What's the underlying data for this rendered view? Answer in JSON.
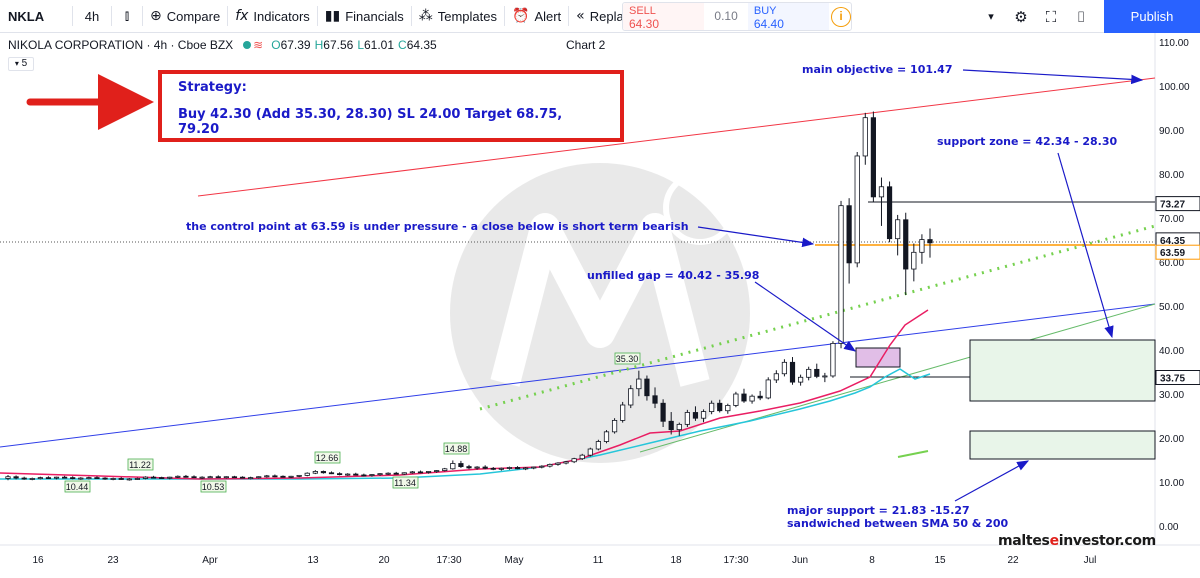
{
  "toolbar": {
    "symbol": "NKLA",
    "interval": "4h",
    "compare": "Compare",
    "indicators": "Indicators",
    "financials": "Financials",
    "templates": "Templates",
    "alert": "Alert",
    "replay": "Replay",
    "sell_label": "SELL",
    "sell_price": "64.30",
    "spread": "0.10",
    "buy_label": "BUY",
    "buy_price": "64.40",
    "info": "i",
    "publish": "Publish",
    "icons": [
      "bar-style-icon",
      "compare-icon",
      "indicators-icon",
      "financials-icon",
      "templates-icon",
      "alert-icon",
      "replay-icon",
      "chevron-down-icon",
      "settings-icon",
      "fullscreen-icon",
      "camera-icon"
    ]
  },
  "legend": {
    "name": "NIKOLA CORPORATION · 4h · Cboe BZX",
    "open": "67.39",
    "high": "67.56",
    "low": "61.01",
    "close": "64.35",
    "chart_label": "Chart 2",
    "indicator_value": "5"
  },
  "strategy": {
    "title": "Strategy:",
    "line": "Buy 42.30 (Add 35.30, 28.30) SL 24.00 Target 68.75, 79.20"
  },
  "annotations": {
    "main_objective": "main objective = 101.47",
    "support_zone": "support zone = 42.34 - 28.30",
    "control_point": "the control point at 63.59 is under pressure - a close below is short term bearish",
    "unfilled_gap": "unfilled gap = 40.42 - 35.98",
    "major_support_1": "major support = 21.83 -15.27",
    "major_support_2": "sandwiched between SMA 50 & 200"
  },
  "brand": {
    "part1": "maltes",
    "e": "e",
    "part2": "investor.com"
  },
  "axis": {
    "y_ticks": [
      "110.00",
      "100.00",
      "90.00",
      "80.00",
      "70.00",
      "60.00",
      "50.00",
      "40.00",
      "30.00",
      "20.00",
      "10.00",
      "0.00"
    ],
    "x_ticks": [
      "16",
      "23",
      "Apr",
      "13",
      "20",
      "17:30",
      "May",
      "11",
      "18",
      "17:30",
      "Jun",
      "8",
      "15",
      "22",
      "Jul"
    ],
    "price_tags": [
      {
        "label": "73.27",
        "color": "#131722"
      },
      {
        "label": "64.35",
        "color": "#131722"
      },
      {
        "label": "63.59",
        "color": "#ff9800"
      },
      {
        "label": "33.75",
        "color": "#131722"
      }
    ],
    "point_labels": [
      "11.22",
      "10.44",
      "10.53",
      "12.66",
      "11.34",
      "14.88",
      "35.30"
    ]
  },
  "chart_data": {
    "type": "candlestick",
    "title": "NIKOLA CORPORATION · 4h · Cboe BZX",
    "ylim": [
      0,
      110
    ],
    "yticks": [
      0,
      10,
      20,
      30,
      40,
      50,
      60,
      70,
      80,
      90,
      100,
      110
    ],
    "candles": [
      [
        10.8,
        11.6,
        10.4,
        11.2
      ],
      [
        11.2,
        11.5,
        10.6,
        10.9
      ],
      [
        10.9,
        11.2,
        10.5,
        10.7
      ],
      [
        10.7,
        11.0,
        10.4,
        10.8
      ],
      [
        10.8,
        11.2,
        10.6,
        11.0
      ],
      [
        11.0,
        11.3,
        10.7,
        10.9
      ],
      [
        10.9,
        11.2,
        10.6,
        11.1
      ],
      [
        11.1,
        11.4,
        10.8,
        11.0
      ],
      [
        11.0,
        11.3,
        10.6,
        10.8
      ],
      [
        10.8,
        11.1,
        10.5,
        10.9
      ],
      [
        10.9,
        11.2,
        10.6,
        11.0
      ],
      [
        11.0,
        11.3,
        10.7,
        10.9
      ],
      [
        10.9,
        11.1,
        10.5,
        10.7
      ],
      [
        10.7,
        11.0,
        10.4,
        10.8
      ],
      [
        10.8,
        11.1,
        10.5,
        10.6
      ],
      [
        10.6,
        10.9,
        10.3,
        10.7
      ],
      [
        10.7,
        11.0,
        10.5,
        10.8
      ],
      [
        10.8,
        11.3,
        10.6,
        11.1
      ],
      [
        11.1,
        11.4,
        10.8,
        11.0
      ],
      [
        11.0,
        11.2,
        10.7,
        10.9
      ],
      [
        10.9,
        11.2,
        10.6,
        11.1
      ],
      [
        11.1,
        11.5,
        10.9,
        11.3
      ],
      [
        11.3,
        11.6,
        11.0,
        11.2
      ],
      [
        11.2,
        11.5,
        10.9,
        11.0
      ],
      [
        11.0,
        11.3,
        10.7,
        11.1
      ],
      [
        11.1,
        11.4,
        10.9,
        11.2
      ],
      [
        11.2,
        11.5,
        10.9,
        11.0
      ],
      [
        11.0,
        11.3,
        10.8,
        11.2
      ],
      [
        11.2,
        11.4,
        10.9,
        11.1
      ],
      [
        11.1,
        11.3,
        10.8,
        10.9
      ],
      [
        10.9,
        11.2,
        10.6,
        11.0
      ],
      [
        11.0,
        11.3,
        10.8,
        11.2
      ],
      [
        11.2,
        11.6,
        11.0,
        11.4
      ],
      [
        11.4,
        11.7,
        11.1,
        11.3
      ],
      [
        11.3,
        11.5,
        11.0,
        11.1
      ],
      [
        11.1,
        11.4,
        10.9,
        11.3
      ],
      [
        11.3,
        11.6,
        11.1,
        11.5
      ],
      [
        11.5,
        12.2,
        11.3,
        12.0
      ],
      [
        12.0,
        12.7,
        11.8,
        12.4
      ],
      [
        12.4,
        12.6,
        11.9,
        12.1
      ],
      [
        12.1,
        12.4,
        11.8,
        11.9
      ],
      [
        11.9,
        12.2,
        11.5,
        11.7
      ],
      [
        11.7,
        12.0,
        11.4,
        11.8
      ],
      [
        11.8,
        12.1,
        11.5,
        11.6
      ],
      [
        11.6,
        11.9,
        11.3,
        11.5
      ],
      [
        11.5,
        11.8,
        11.2,
        11.7
      ],
      [
        11.7,
        12.0,
        11.4,
        11.9
      ],
      [
        11.9,
        12.2,
        11.6,
        12.0
      ],
      [
        12.0,
        12.3,
        11.7,
        11.8
      ],
      [
        11.8,
        12.2,
        11.6,
        12.1
      ],
      [
        12.1,
        12.5,
        11.9,
        12.3
      ],
      [
        12.3,
        12.6,
        12.0,
        12.2
      ],
      [
        12.2,
        12.5,
        11.9,
        12.4
      ],
      [
        12.4,
        12.7,
        12.1,
        12.6
      ],
      [
        12.6,
        13.2,
        12.4,
        13.0
      ],
      [
        13.0,
        14.9,
        12.8,
        14.2
      ],
      [
        14.2,
        14.8,
        13.2,
        13.5
      ],
      [
        13.5,
        13.9,
        12.9,
        13.2
      ],
      [
        13.2,
        13.6,
        12.8,
        13.4
      ],
      [
        13.4,
        13.8,
        12.9,
        13.1
      ],
      [
        13.1,
        13.4,
        12.7,
        12.9
      ],
      [
        12.9,
        13.3,
        12.6,
        13.1
      ],
      [
        13.1,
        13.5,
        12.8,
        13.3
      ],
      [
        13.3,
        13.6,
        12.9,
        13.0
      ],
      [
        13.0,
        13.4,
        12.7,
        13.2
      ],
      [
        13.2,
        13.5,
        12.9,
        13.4
      ],
      [
        13.4,
        13.8,
        13.1,
        13.6
      ],
      [
        13.6,
        14.2,
        13.3,
        14.0
      ],
      [
        14.0,
        14.5,
        13.7,
        14.3
      ],
      [
        14.3,
        14.8,
        14.0,
        14.6
      ],
      [
        14.6,
        15.5,
        14.3,
        15.3
      ],
      [
        15.3,
        16.4,
        15.0,
        16.1
      ],
      [
        16.1,
        17.8,
        15.8,
        17.5
      ],
      [
        17.5,
        19.6,
        17.2,
        19.2
      ],
      [
        19.2,
        21.8,
        18.8,
        21.4
      ],
      [
        21.4,
        24.5,
        21.0,
        24.0
      ],
      [
        24.0,
        28.2,
        23.5,
        27.5
      ],
      [
        27.5,
        32.0,
        26.8,
        31.2
      ],
      [
        31.2,
        35.3,
        29.5,
        33.4
      ],
      [
        33.4,
        34.2,
        28.5,
        29.6
      ],
      [
        29.6,
        31.5,
        26.8,
        27.9
      ],
      [
        27.9,
        28.8,
        22.5,
        23.8
      ],
      [
        23.8,
        25.9,
        20.8,
        21.9
      ],
      [
        21.9,
        23.5,
        20.5,
        23.1
      ],
      [
        23.1,
        26.4,
        22.5,
        25.8
      ],
      [
        25.8,
        27.2,
        23.9,
        24.5
      ],
      [
        24.5,
        26.5,
        23.6,
        26.0
      ],
      [
        26.0,
        28.5,
        25.4,
        27.9
      ],
      [
        27.9,
        28.7,
        25.8,
        26.2
      ],
      [
        26.2,
        27.8,
        25.5,
        27.4
      ],
      [
        27.4,
        30.5,
        27.0,
        30.0
      ],
      [
        30.0,
        31.2,
        28.0,
        28.4
      ],
      [
        28.4,
        29.9,
        27.8,
        29.5
      ],
      [
        29.5,
        30.7,
        28.6,
        29.1
      ],
      [
        29.1,
        33.8,
        28.8,
        33.2
      ],
      [
        33.2,
        35.4,
        32.5,
        34.6
      ],
      [
        34.6,
        37.9,
        34.0,
        37.2
      ],
      [
        37.2,
        38.4,
        32.1,
        32.7
      ],
      [
        32.7,
        34.4,
        31.9,
        33.8
      ],
      [
        33.8,
        36.2,
        33.1,
        35.6
      ],
      [
        35.6,
        36.9,
        33.6,
        34.0
      ],
      [
        34.0,
        34.8,
        32.7,
        34.1
      ],
      [
        34.1,
        42.0,
        33.7,
        41.5
      ],
      [
        41.5,
        73.9,
        40.4,
        72.8
      ],
      [
        72.8,
        74.5,
        55.1,
        59.8
      ],
      [
        59.8,
        85.0,
        58.8,
        84.1
      ],
      [
        84.1,
        93.9,
        82.1,
        92.8
      ],
      [
        92.8,
        94.2,
        73.6,
        74.8
      ],
      [
        74.8,
        79.2,
        68.2,
        77.1
      ],
      [
        77.1,
        78.3,
        64.5,
        65.3
      ],
      [
        65.3,
        70.7,
        61.5,
        69.6
      ],
      [
        69.6,
        71.2,
        52.5,
        58.4
      ],
      [
        58.4,
        64.2,
        55.6,
        62.2
      ],
      [
        62.2,
        66.3,
        59.6,
        65.1
      ],
      [
        65.1,
        67.6,
        61.0,
        64.35
      ]
    ],
    "horizontal_levels": [
      73.27,
      64.35,
      63.59,
      33.75
    ],
    "boxes": [
      {
        "name": "unfilled gap",
        "high": 40.42,
        "low": 35.98
      },
      {
        "name": "support zone",
        "high": 42.34,
        "low": 28.3
      },
      {
        "name": "major support",
        "high": 21.83,
        "low": 15.27
      }
    ]
  }
}
